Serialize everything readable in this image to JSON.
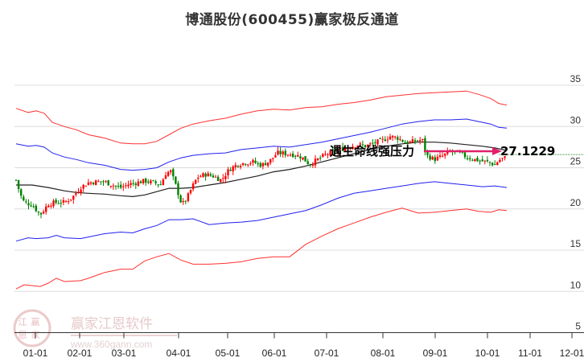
{
  "title": "博通股份(600455)赢家极反通道",
  "watermark": {
    "name": "赢家江恩软件",
    "url": "www.360gann.com",
    "seal": [
      "江",
      "赢",
      "恩",
      "家"
    ]
  },
  "chart_data": {
    "type": "candlestick",
    "title": "博通股份(600455)赢家极反通道",
    "xlabel": "",
    "ylabel": "",
    "ylim": [
      5,
      37
    ],
    "grid": true,
    "y_axis_position": "right",
    "y_ticks": [
      35,
      30,
      25,
      20,
      15,
      10,
      5
    ],
    "x_ticks": [
      "01-01",
      "02-01",
      "03-01",
      "04-01",
      "05-01",
      "06-01",
      "07-01",
      "08-01",
      "09-01",
      "10-01",
      "11-01",
      "12-01"
    ],
    "annotation": {
      "text": "遇生命线强压力",
      "value_label": "27.1229",
      "value": 27.1229,
      "arrow_color": "#e0206a"
    },
    "reference_line": {
      "value": 26.6,
      "color": "#2a8a2a",
      "style": "dotted"
    },
    "colors": {
      "up": "#ff0000",
      "down": "#008000",
      "outer_band": "#ff3030",
      "inner_band": "#2020ee",
      "mid_line": "#222222"
    },
    "series": [
      {
        "name": "outer_upper",
        "color": "#ff3030",
        "points": [
          [
            20,
            32.2
          ],
          [
            35,
            31.7
          ],
          [
            45,
            31.9
          ],
          [
            55,
            31.6
          ],
          [
            65,
            30.5
          ],
          [
            80,
            30.0
          ],
          [
            95,
            29.6
          ],
          [
            110,
            29.0
          ],
          [
            130,
            28.6
          ],
          [
            150,
            28.0
          ],
          [
            165,
            27.9
          ],
          [
            180,
            27.9
          ],
          [
            195,
            28.2
          ],
          [
            210,
            29.0
          ],
          [
            225,
            29.8
          ],
          [
            240,
            30.3
          ],
          [
            260,
            30.7
          ],
          [
            280,
            31.0
          ],
          [
            300,
            31.5
          ],
          [
            320,
            31.9
          ],
          [
            340,
            32.1
          ],
          [
            360,
            32.0
          ],
          [
            380,
            32.3
          ],
          [
            400,
            32.4
          ],
          [
            420,
            32.7
          ],
          [
            440,
            32.9
          ],
          [
            460,
            33.2
          ],
          [
            480,
            33.6
          ],
          [
            500,
            33.8
          ],
          [
            520,
            34.0
          ],
          [
            540,
            34.1
          ],
          [
            560,
            34.2
          ],
          [
            580,
            34.3
          ],
          [
            595,
            33.9
          ],
          [
            610,
            33.4
          ],
          [
            620,
            32.8
          ],
          [
            630,
            32.6
          ]
        ]
      },
      {
        "name": "inner_upper",
        "color": "#2020ee",
        "points": [
          [
            20,
            27.9
          ],
          [
            35,
            27.6
          ],
          [
            45,
            27.7
          ],
          [
            55,
            27.5
          ],
          [
            65,
            26.8
          ],
          [
            80,
            26.3
          ],
          [
            95,
            26.0
          ],
          [
            110,
            25.6
          ],
          [
            130,
            25.3
          ],
          [
            150,
            24.8
          ],
          [
            165,
            24.7
          ],
          [
            180,
            24.8
          ],
          [
            195,
            25.0
          ],
          [
            210,
            25.7
          ],
          [
            225,
            26.2
          ],
          [
            240,
            26.5
          ],
          [
            260,
            26.7
          ],
          [
            280,
            26.8
          ],
          [
            300,
            27.2
          ],
          [
            320,
            27.4
          ],
          [
            340,
            27.6
          ],
          [
            360,
            27.5
          ],
          [
            380,
            27.8
          ],
          [
            400,
            28.1
          ],
          [
            420,
            28.5
          ],
          [
            440,
            28.9
          ],
          [
            460,
            29.3
          ],
          [
            480,
            29.8
          ],
          [
            500,
            30.3
          ],
          [
            520,
            30.6
          ],
          [
            540,
            30.8
          ],
          [
            560,
            30.8
          ],
          [
            580,
            30.9
          ],
          [
            595,
            30.6
          ],
          [
            610,
            30.3
          ],
          [
            620,
            29.9
          ],
          [
            630,
            29.8
          ]
        ]
      },
      {
        "name": "mid_line",
        "color": "#222222",
        "points": [
          [
            20,
            22.9
          ],
          [
            40,
            22.9
          ],
          [
            60,
            22.6
          ],
          [
            80,
            22.2
          ],
          [
            95,
            22.0
          ],
          [
            110,
            21.9
          ],
          [
            130,
            21.8
          ],
          [
            150,
            21.6
          ],
          [
            165,
            21.5
          ],
          [
            180,
            21.7
          ],
          [
            195,
            22.1
          ],
          [
            210,
            22.5
          ],
          [
            225,
            22.5
          ],
          [
            240,
            22.6
          ],
          [
            260,
            22.9
          ],
          [
            280,
            23.2
          ],
          [
            300,
            23.6
          ],
          [
            320,
            24.0
          ],
          [
            340,
            24.5
          ],
          [
            360,
            24.8
          ],
          [
            380,
            25.2
          ],
          [
            400,
            25.7
          ],
          [
            420,
            26.2
          ],
          [
            440,
            26.7
          ],
          [
            460,
            27.2
          ],
          [
            480,
            27.6
          ],
          [
            500,
            27.9
          ],
          [
            520,
            28.1
          ],
          [
            540,
            28.1
          ],
          [
            560,
            28.0
          ],
          [
            580,
            27.8
          ],
          [
            600,
            27.6
          ],
          [
            615,
            27.4
          ],
          [
            630,
            27.1
          ]
        ]
      },
      {
        "name": "inner_lower",
        "color": "#2020ee",
        "points": [
          [
            20,
            16.1
          ],
          [
            35,
            16.5
          ],
          [
            45,
            16.4
          ],
          [
            60,
            16.5
          ],
          [
            70,
            16.8
          ],
          [
            80,
            16.5
          ],
          [
            100,
            16.4
          ],
          [
            110,
            16.6
          ],
          [
            130,
            17.0
          ],
          [
            150,
            17.2
          ],
          [
            165,
            17.1
          ],
          [
            180,
            17.6
          ],
          [
            195,
            18.0
          ],
          [
            210,
            18.7
          ],
          [
            225,
            18.7
          ],
          [
            240,
            18.8
          ],
          [
            260,
            18.1
          ],
          [
            280,
            18.3
          ],
          [
            300,
            18.4
          ],
          [
            320,
            18.6
          ],
          [
            340,
            19.0
          ],
          [
            360,
            19.4
          ],
          [
            380,
            19.8
          ],
          [
            400,
            20.5
          ],
          [
            420,
            21.3
          ],
          [
            440,
            21.9
          ],
          [
            460,
            22.2
          ],
          [
            480,
            22.5
          ],
          [
            500,
            22.8
          ],
          [
            520,
            23.1
          ],
          [
            540,
            23.3
          ],
          [
            560,
            23.1
          ],
          [
            580,
            22.9
          ],
          [
            600,
            22.7
          ],
          [
            615,
            22.8
          ],
          [
            630,
            22.6
          ]
        ]
      },
      {
        "name": "outer_lower",
        "color": "#ff3030",
        "points": [
          [
            20,
            10.3
          ],
          [
            30,
            10.8
          ],
          [
            50,
            10.6
          ],
          [
            60,
            11.0
          ],
          [
            70,
            11.6
          ],
          [
            80,
            11.2
          ],
          [
            100,
            11.3
          ],
          [
            110,
            11.6
          ],
          [
            130,
            12.3
          ],
          [
            150,
            12.7
          ],
          [
            165,
            12.7
          ],
          [
            180,
            13.7
          ],
          [
            195,
            14.2
          ],
          [
            210,
            14.6
          ],
          [
            225,
            13.8
          ],
          [
            240,
            13.3
          ],
          [
            260,
            13.3
          ],
          [
            280,
            13.4
          ],
          [
            300,
            13.6
          ],
          [
            320,
            14.0
          ],
          [
            340,
            14.2
          ],
          [
            360,
            14.2
          ],
          [
            380,
            15.7
          ],
          [
            400,
            16.7
          ],
          [
            420,
            17.6
          ],
          [
            440,
            18.3
          ],
          [
            460,
            19.0
          ],
          [
            480,
            19.6
          ],
          [
            500,
            20.1
          ],
          [
            520,
            19.5
          ],
          [
            540,
            19.6
          ],
          [
            560,
            19.8
          ],
          [
            580,
            20.0
          ],
          [
            595,
            19.7
          ],
          [
            610,
            19.6
          ],
          [
            620,
            19.9
          ],
          [
            630,
            19.8
          ]
        ]
      }
    ]
  }
}
